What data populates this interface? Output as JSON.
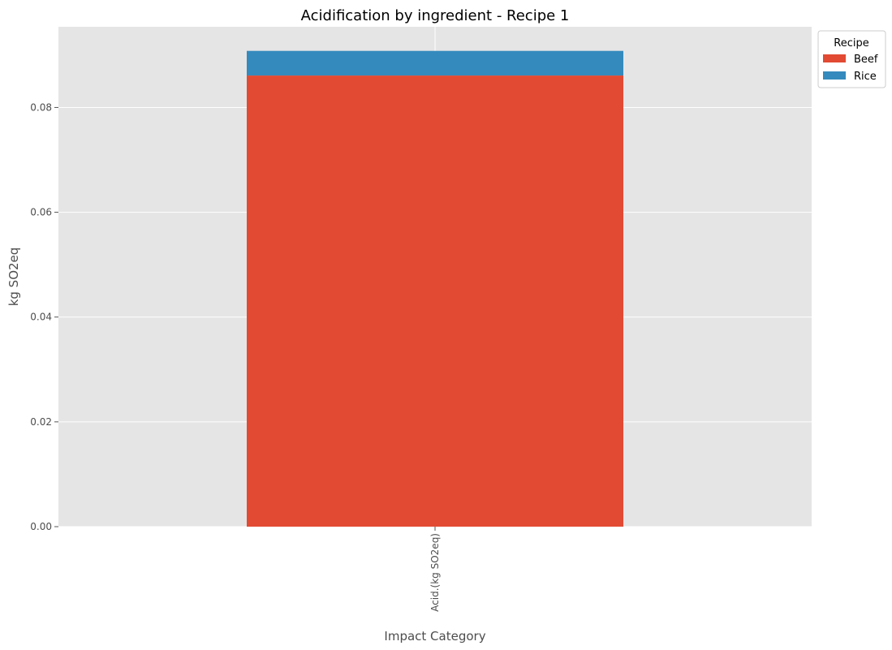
{
  "chart_data": {
    "type": "bar",
    "stacked": true,
    "title": "Acidification by ingredient - Recipe 1",
    "xlabel": "Impact Category",
    "ylabel": "kg SO2eq",
    "categories": [
      "Acid.(kg SO2eq)"
    ],
    "series": [
      {
        "name": "Beef",
        "values": [
          0.0861
        ],
        "color": "#E24A33"
      },
      {
        "name": "Rice",
        "values": [
          0.0047
        ],
        "color": "#348ABD"
      }
    ],
    "ylim": [
      0,
      0.0954
    ],
    "yticks": [
      0.0,
      0.02,
      0.04,
      0.06,
      0.08
    ],
    "ytick_labels": [
      "0.00",
      "0.02",
      "0.04",
      "0.06",
      "0.08"
    ],
    "grid": true,
    "legend": {
      "title": "Recipe",
      "placement": "outside top-right"
    },
    "background": "#E5E5E5"
  }
}
